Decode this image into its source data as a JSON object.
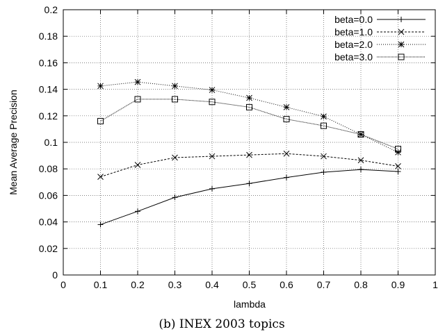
{
  "chart_data": {
    "type": "line",
    "xlabel": "lambda",
    "ylabel": "Mean Average Precision",
    "xlim": [
      0,
      1
    ],
    "ylim": [
      0,
      0.2
    ],
    "x_ticks": [
      "0",
      "0.1",
      "0.2",
      "0.3",
      "0.4",
      "0.5",
      "0.6",
      "0.7",
      "0.8",
      "0.9",
      "1"
    ],
    "y_ticks": [
      "0",
      "0.02",
      "0.04",
      "0.06",
      "0.08",
      "0.1",
      "0.12",
      "0.14",
      "0.16",
      "0.18",
      "0.2"
    ],
    "grid": true,
    "legend_position": "top-right",
    "x": [
      0.1,
      0.2,
      0.3,
      0.4,
      0.5,
      0.6,
      0.7,
      0.8,
      0.9
    ],
    "series": [
      {
        "name": "beta=0.0",
        "marker": "plus",
        "dash": "solid",
        "values": [
          0.038,
          0.048,
          0.0585,
          0.065,
          0.069,
          0.0735,
          0.0775,
          0.0795,
          0.078
        ]
      },
      {
        "name": "beta=1.0",
        "marker": "cross",
        "dash": "dashed",
        "values": [
          0.074,
          0.083,
          0.0885,
          0.0895,
          0.0905,
          0.0915,
          0.0895,
          0.0865,
          0.082
        ]
      },
      {
        "name": "beta=2.0",
        "marker": "star",
        "dash": "dotted",
        "values": [
          0.1425,
          0.1455,
          0.1425,
          0.1395,
          0.1335,
          0.1265,
          0.1195,
          0.106,
          0.0925
        ]
      },
      {
        "name": "beta=3.0",
        "marker": "square",
        "dash": "densedot",
        "values": [
          0.116,
          0.1325,
          0.1325,
          0.1305,
          0.1265,
          0.1175,
          0.1125,
          0.106,
          0.095
        ]
      }
    ]
  },
  "caption": "(b) INEX 2003 topics"
}
